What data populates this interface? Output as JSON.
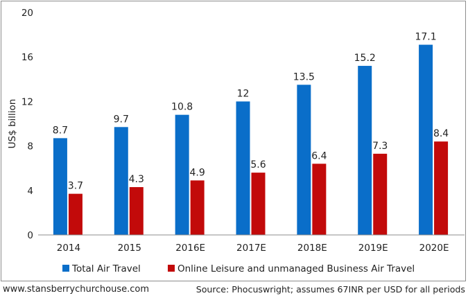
{
  "chart_data": {
    "type": "bar",
    "categories": [
      "2014",
      "2015",
      "2016E",
      "2017E",
      "2018E",
      "2019E",
      "2020E"
    ],
    "series": [
      {
        "name": "Total Air Travel",
        "values": [
          8.7,
          9.7,
          10.8,
          12,
          13.5,
          15.2,
          17.1
        ],
        "color": "#0a6ec9"
      },
      {
        "name": "Online Leisure and unmanaged Business Air Travel",
        "values": [
          3.7,
          4.3,
          4.9,
          5.6,
          6.4,
          7.3,
          8.4
        ],
        "color": "#c20a0a"
      }
    ],
    "ylabel": "US$ billion",
    "ylim": [
      0,
      20
    ],
    "yticks": [
      0,
      4,
      8,
      12,
      16,
      20
    ],
    "grid": false,
    "legend": "bottom"
  },
  "footer": {
    "left": "www.stansberrychurchouse.com",
    "right": "Source: Phocuswright; assumes 67INR per USD for all periods"
  }
}
